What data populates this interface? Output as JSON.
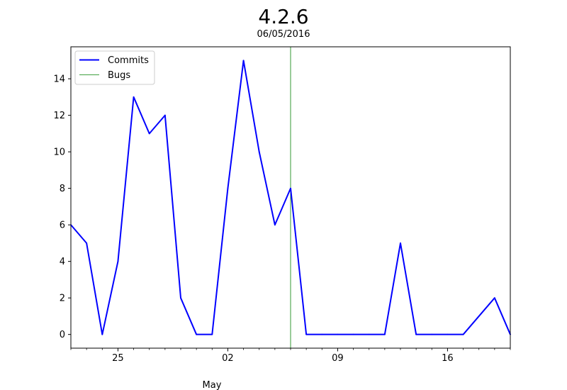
{
  "chart_data": {
    "type": "line",
    "title": "4.2.6",
    "subtitle": "06/05/2016",
    "xlabel": "",
    "ylabel": "",
    "month_label": "May",
    "x": [
      "2016-04-22",
      "2016-04-23",
      "2016-04-24",
      "2016-04-25",
      "2016-04-26",
      "2016-04-27",
      "2016-04-28",
      "2016-04-29",
      "2016-04-30",
      "2016-05-01",
      "2016-05-02",
      "2016-05-03",
      "2016-05-04",
      "2016-05-05",
      "2016-05-06",
      "2016-05-07",
      "2016-05-08",
      "2016-05-09",
      "2016-05-10",
      "2016-05-11",
      "2016-05-12",
      "2016-05-13",
      "2016-05-14",
      "2016-05-15",
      "2016-05-16",
      "2016-05-17",
      "2016-05-18",
      "2016-05-19",
      "2016-05-20"
    ],
    "series": [
      {
        "name": "Commits",
        "color": "#0000ff",
        "values": [
          6,
          5,
          0,
          4,
          13,
          11,
          12,
          2,
          0,
          0,
          8,
          15,
          10,
          6,
          8,
          0,
          0,
          0,
          0,
          0,
          0,
          5,
          0,
          0,
          0,
          0,
          1,
          2,
          0
        ]
      }
    ],
    "markers": [
      {
        "name": "Bugs",
        "color": "#008000",
        "x": "2016-05-06"
      }
    ],
    "xlim": [
      "2016-04-22",
      "2016-05-20"
    ],
    "ylim": [
      -0.75,
      15.75
    ],
    "x_major_ticks": [
      {
        "x": "2016-04-25",
        "label": "25"
      },
      {
        "x": "2016-05-02",
        "label": "02"
      },
      {
        "x": "2016-05-09",
        "label": "09"
      },
      {
        "x": "2016-05-16",
        "label": "16"
      }
    ],
    "x_minor_ticks": [
      "2016-04-22",
      "2016-04-23",
      "2016-04-24",
      "2016-04-26",
      "2016-04-27",
      "2016-04-28",
      "2016-04-29",
      "2016-04-30",
      "2016-05-01",
      "2016-05-03",
      "2016-05-04",
      "2016-05-05",
      "2016-05-06",
      "2016-05-07",
      "2016-05-08",
      "2016-05-10",
      "2016-05-11",
      "2016-05-12",
      "2016-05-13",
      "2016-05-14",
      "2016-05-15",
      "2016-05-17",
      "2016-05-18",
      "2016-05-19",
      "2016-05-20"
    ],
    "y_ticks": [
      0,
      2,
      4,
      6,
      8,
      10,
      12,
      14
    ],
    "grid": false,
    "legend": {
      "placement": "top-left",
      "entries": [
        "Commits",
        "Bugs"
      ]
    }
  }
}
